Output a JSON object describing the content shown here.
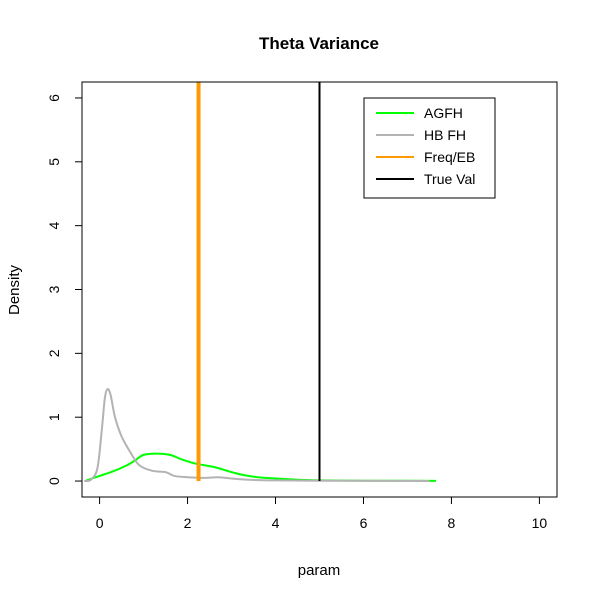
{
  "chart_data": {
    "type": "line",
    "title": "Theta Variance",
    "xlabel": "param",
    "ylabel": "Density",
    "xlim": [
      -0.4,
      10.4
    ],
    "ylim": [
      -0.25,
      6.25
    ],
    "x_ticks": [
      0,
      2,
      4,
      6,
      8,
      10
    ],
    "y_ticks": [
      0,
      1,
      2,
      3,
      4,
      5,
      6
    ],
    "grid": false,
    "legend_position": "top-right",
    "series": [
      {
        "name": "AGFH",
        "color": "#00ff00",
        "style": "curve",
        "points": [
          [
            -0.3,
            0.01
          ],
          [
            0.0,
            0.08
          ],
          [
            0.3,
            0.15
          ],
          [
            0.6,
            0.24
          ],
          [
            0.8,
            0.32
          ],
          [
            1.0,
            0.41
          ],
          [
            1.3,
            0.43
          ],
          [
            1.6,
            0.41
          ],
          [
            1.9,
            0.33
          ],
          [
            2.2,
            0.27
          ],
          [
            2.6,
            0.22
          ],
          [
            3.0,
            0.14
          ],
          [
            3.3,
            0.09
          ],
          [
            3.6,
            0.06
          ],
          [
            4.0,
            0.04
          ],
          [
            4.5,
            0.02
          ],
          [
            5.0,
            0.01
          ],
          [
            6.0,
            0.005
          ],
          [
            7.0,
            0.004
          ],
          [
            7.65,
            0.003
          ]
        ]
      },
      {
        "name": "HB FH",
        "color": "#b3b3b3",
        "style": "curve",
        "points": [
          [
            -0.35,
            0.0
          ],
          [
            -0.2,
            0.02
          ],
          [
            -0.05,
            0.2
          ],
          [
            0.05,
            0.8
          ],
          [
            0.12,
            1.3
          ],
          [
            0.18,
            1.44
          ],
          [
            0.25,
            1.35
          ],
          [
            0.35,
            1.0
          ],
          [
            0.5,
            0.7
          ],
          [
            0.7,
            0.45
          ],
          [
            0.9,
            0.25
          ],
          [
            1.2,
            0.16
          ],
          [
            1.5,
            0.14
          ],
          [
            1.7,
            0.08
          ],
          [
            2.0,
            0.06
          ],
          [
            2.4,
            0.05
          ],
          [
            2.7,
            0.06
          ],
          [
            3.0,
            0.04
          ],
          [
            3.4,
            0.02
          ],
          [
            4.0,
            0.01
          ],
          [
            5.0,
            0.005
          ],
          [
            6.5,
            0.003
          ],
          [
            7.5,
            0.0
          ]
        ]
      },
      {
        "name": "Freq/EB",
        "color": "#ff9900",
        "style": "vline",
        "x": 2.25
      },
      {
        "name": "True Val",
        "color": "#000000",
        "style": "vline",
        "x": 5.0
      }
    ]
  }
}
